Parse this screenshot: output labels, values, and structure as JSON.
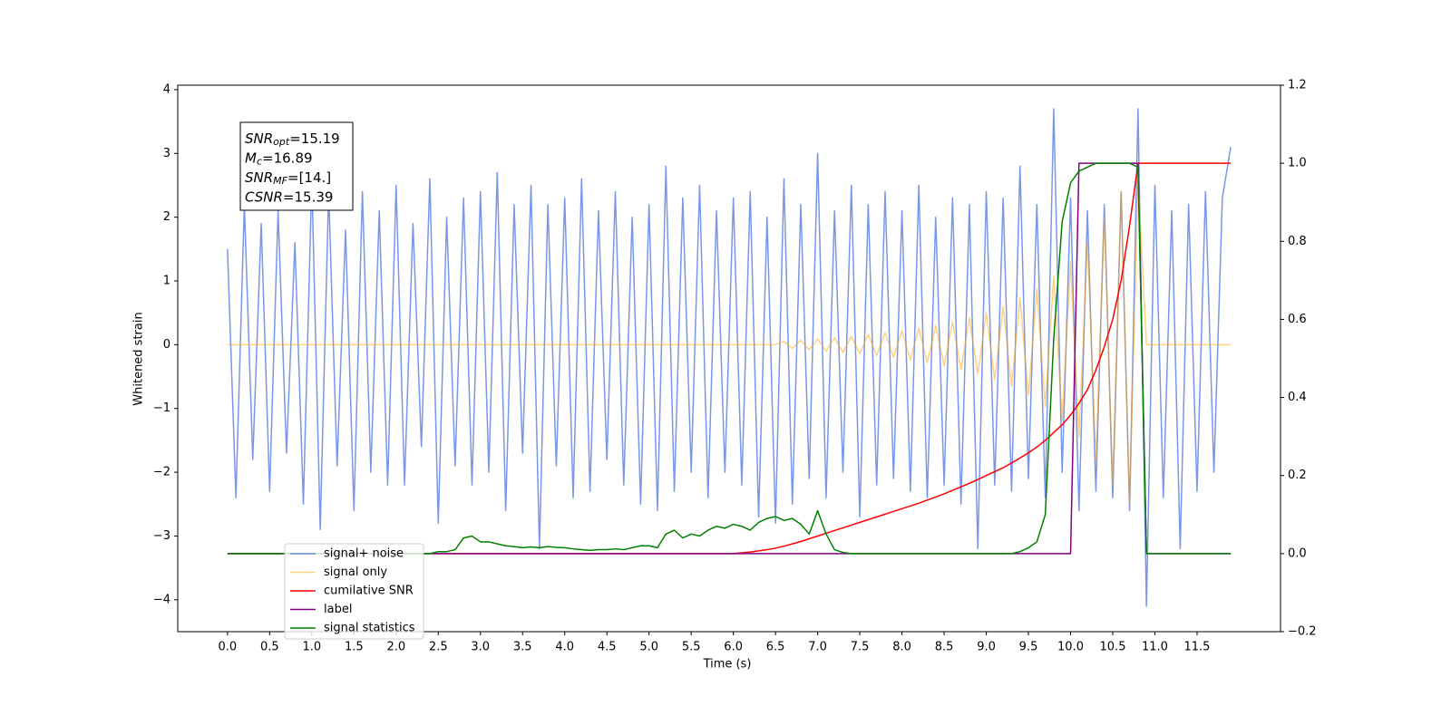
{
  "chart_data": {
    "type": "line",
    "xlabel": "Time (s)",
    "ylabel": "Whitened strain",
    "x": [
      0,
      0.1,
      0.2,
      0.3,
      0.4,
      0.5,
      0.6,
      0.7,
      0.8,
      0.9,
      1,
      1.1,
      1.2,
      1.3,
      1.4,
      1.5,
      1.6,
      1.7,
      1.8,
      1.9,
      2,
      2.1,
      2.2,
      2.3,
      2.4,
      2.5,
      2.6,
      2.7,
      2.8,
      2.9,
      3,
      3.1,
      3.2,
      3.3,
      3.4,
      3.5,
      3.6,
      3.7,
      3.8,
      3.9,
      4,
      4.1,
      4.2,
      4.3,
      4.4,
      4.5,
      4.6,
      4.7,
      4.8,
      4.9,
      5,
      5.1,
      5.2,
      5.3,
      5.4,
      5.5,
      5.6,
      5.7,
      5.8,
      5.9,
      6,
      6.1,
      6.2,
      6.3,
      6.4,
      6.5,
      6.6,
      6.7,
      6.8,
      6.9,
      7,
      7.1,
      7.2,
      7.3,
      7.4,
      7.5,
      7.6,
      7.7,
      7.8,
      7.9,
      8,
      8.1,
      8.2,
      8.3,
      8.4,
      8.5,
      8.6,
      8.7,
      8.8,
      8.9,
      9,
      9.1,
      9.2,
      9.3,
      9.4,
      9.5,
      9.6,
      9.7,
      9.8,
      9.9,
      10,
      10.1,
      10.2,
      10.3,
      10.4,
      10.5,
      10.6,
      10.7,
      10.8,
      10.9,
      11,
      11.1,
      11.2,
      11.3,
      11.4,
      11.5,
      11.6,
      11.7,
      11.8,
      11.9
    ],
    "series": [
      {
        "name": "signal+ noise",
        "color": "royalblue",
        "alpha": 0.7,
        "axis": "y",
        "values": [
          1.5,
          -2.4,
          2.2,
          -1.8,
          1.9,
          -2.3,
          2.1,
          -1.7,
          1.6,
          -2.5,
          2.6,
          -2.9,
          2.4,
          -1.9,
          1.8,
          -2.6,
          2.4,
          -2.0,
          2.1,
          -2.2,
          2.5,
          -2.2,
          1.9,
          -1.6,
          2.6,
          -2.8,
          2.0,
          -1.9,
          2.3,
          -2.2,
          2.4,
          -2.0,
          2.7,
          -2.6,
          2.2,
          -1.7,
          2.5,
          -3.2,
          2.2,
          -1.9,
          2.3,
          -2.4,
          2.6,
          -2.3,
          2.1,
          -1.8,
          2.4,
          -2.2,
          2.0,
          -2.5,
          2.2,
          -2.6,
          2.8,
          -2.3,
          2.3,
          -2.0,
          2.5,
          -2.4,
          2.1,
          -2.0,
          2.3,
          -2.2,
          2.4,
          -2.7,
          2.0,
          -2.8,
          2.6,
          -2.5,
          2.2,
          -2.1,
          3.0,
          -2.4,
          2.1,
          -2.0,
          2.5,
          -2.7,
          2.2,
          -2.2,
          2.4,
          -2.1,
          2.1,
          -2.3,
          2.5,
          -2.4,
          2.0,
          -2.2,
          2.3,
          -2.5,
          2.2,
          -3.2,
          2.4,
          -2.2,
          2.3,
          -2.3,
          2.8,
          -2.1,
          2.2,
          -2.4,
          3.7,
          -2.0,
          2.3,
          -2.6,
          2.1,
          -2.3,
          2.2,
          -2.4,
          2.4,
          -2.6,
          3.7,
          -4.1,
          2.5,
          -2.4,
          2.1,
          -3.2,
          2.2,
          -2.3,
          2.4,
          -2.0,
          2.3,
          3.1
        ]
      },
      {
        "name": "signal only",
        "color": "orange",
        "alpha": 0.5,
        "axis": "y",
        "values": [
          0,
          0,
          0,
          0,
          0,
          0,
          0,
          0,
          0,
          0,
          0,
          0,
          0,
          0,
          0,
          0,
          0,
          0,
          0,
          0,
          0,
          0,
          0,
          0,
          0,
          0,
          0,
          0,
          0,
          0,
          0,
          0,
          0,
          0,
          0,
          0,
          0,
          0,
          0,
          0,
          0,
          0,
          0,
          0,
          0,
          0,
          0,
          0,
          0,
          0,
          0,
          0,
          0,
          0,
          0,
          0,
          0,
          0,
          0,
          0,
          0,
          0,
          0,
          0,
          0,
          0,
          0.05,
          -0.06,
          0.07,
          -0.08,
          0.09,
          -0.1,
          0.11,
          -0.12,
          0.13,
          -0.14,
          0.16,
          -0.17,
          0.19,
          -0.2,
          0.22,
          -0.24,
          0.26,
          -0.28,
          0.3,
          -0.33,
          0.36,
          -0.39,
          0.42,
          -0.46,
          0.5,
          -0.55,
          0.6,
          -0.66,
          0.73,
          -0.8,
          0.88,
          -0.97,
          1.07,
          -1.18,
          1.3,
          -1.45,
          1.6,
          -1.8,
          2.0,
          -2.2,
          2.4,
          -2.5,
          2.6,
          0,
          0,
          0,
          0,
          0,
          0,
          0,
          0,
          0,
          0,
          0
        ]
      },
      {
        "name": "cumilative SNR",
        "color": "red",
        "alpha": 1,
        "axis": "y2",
        "values": [
          0,
          0,
          0,
          0,
          0,
          0,
          0,
          0,
          0,
          0,
          0,
          0,
          0,
          0,
          0,
          0,
          0,
          0,
          0,
          0,
          0,
          0,
          0,
          0,
          0,
          0,
          0,
          0,
          0,
          0,
          0,
          0,
          0,
          0,
          0,
          0,
          0,
          0,
          0,
          0,
          0,
          0,
          0,
          0,
          0,
          0,
          0,
          0,
          0,
          0,
          0,
          0,
          0,
          0,
          0,
          0,
          0,
          0,
          0,
          0,
          0,
          0.002,
          0.004,
          0.007,
          0.01,
          0.014,
          0.019,
          0.025,
          0.031,
          0.038,
          0.045,
          0.052,
          0.059,
          0.066,
          0.073,
          0.08,
          0.087,
          0.094,
          0.101,
          0.108,
          0.115,
          0.122,
          0.129,
          0.137,
          0.145,
          0.153,
          0.162,
          0.171,
          0.18,
          0.19,
          0.2,
          0.21,
          0.22,
          0.232,
          0.245,
          0.258,
          0.273,
          0.29,
          0.31,
          0.33,
          0.355,
          0.385,
          0.42,
          0.47,
          0.53,
          0.6,
          0.7,
          0.84,
          1,
          1,
          1,
          1,
          1,
          1,
          1,
          1,
          1,
          1,
          1,
          1
        ]
      },
      {
        "name": "label",
        "color": "purple",
        "alpha": 1,
        "axis": "y2",
        "values": [
          0,
          0,
          0,
          0,
          0,
          0,
          0,
          0,
          0,
          0,
          0,
          0,
          0,
          0,
          0,
          0,
          0,
          0,
          0,
          0,
          0,
          0,
          0,
          0,
          0,
          0,
          0,
          0,
          0,
          0,
          0,
          0,
          0,
          0,
          0,
          0,
          0,
          0,
          0,
          0,
          0,
          0,
          0,
          0,
          0,
          0,
          0,
          0,
          0,
          0,
          0,
          0,
          0,
          0,
          0,
          0,
          0,
          0,
          0,
          0,
          0,
          0,
          0,
          0,
          0,
          0,
          0,
          0,
          0,
          0,
          0,
          0,
          0,
          0,
          0,
          0,
          0,
          0,
          0,
          0,
          0,
          0,
          0,
          0,
          0,
          0,
          0,
          0,
          0,
          0,
          0,
          0,
          0,
          0,
          0,
          0,
          0,
          0,
          0,
          0,
          0,
          1,
          1,
          1,
          1,
          1,
          1,
          1,
          1,
          0,
          0,
          0,
          0,
          0,
          0,
          0,
          0,
          0,
          0,
          0
        ]
      },
      {
        "name": "signal statistics",
        "color": "green",
        "alpha": 1,
        "axis": "y2",
        "values": [
          0,
          0,
          0,
          0,
          0,
          0,
          0,
          0,
          0,
          0,
          0,
          0,
          0,
          0,
          0,
          0,
          0,
          0,
          0,
          0,
          0,
          0,
          0,
          0,
          0,
          0.005,
          0.005,
          0.01,
          0.04,
          0.045,
          0.03,
          0.03,
          0.025,
          0.02,
          0.018,
          0.015,
          0.017,
          0.015,
          0.018,
          0.016,
          0.015,
          0.012,
          0.01,
          0.008,
          0.01,
          0.01,
          0.012,
          0.01,
          0.015,
          0.02,
          0.02,
          0.015,
          0.05,
          0.06,
          0.04,
          0.05,
          0.045,
          0.06,
          0.07,
          0.065,
          0.075,
          0.07,
          0.06,
          0.08,
          0.09,
          0.095,
          0.085,
          0.09,
          0.075,
          0.05,
          0.11,
          0.05,
          0.01,
          0.003,
          0,
          0,
          0,
          0,
          0,
          0,
          0,
          0,
          0,
          0,
          0,
          0,
          0,
          0,
          0,
          0,
          0,
          0,
          0,
          0,
          0.005,
          0.015,
          0.03,
          0.1,
          0.55,
          0.85,
          0.95,
          0.98,
          0.99,
          1,
          1,
          1,
          1,
          1,
          0.99,
          0,
          0,
          0,
          0,
          0,
          0,
          0,
          0,
          0,
          0,
          0
        ]
      }
    ],
    "xlim": [
      -0.59,
      12.49
    ],
    "ylim": [
      -4.5,
      4.07
    ],
    "y2lim": [
      -0.2,
      1.2
    ],
    "xticks": [
      {
        "value": 0,
        "label": "0.0"
      },
      {
        "value": 0.5,
        "label": "0.5"
      },
      {
        "value": 1,
        "label": "1.0"
      },
      {
        "value": 1.5,
        "label": "1.5"
      },
      {
        "value": 2,
        "label": "2.0"
      },
      {
        "value": 2.5,
        "label": "2.5"
      },
      {
        "value": 3,
        "label": "3.0"
      },
      {
        "value": 3.5,
        "label": "3.5"
      },
      {
        "value": 4,
        "label": "4.0"
      },
      {
        "value": 4.5,
        "label": "4.5"
      },
      {
        "value": 5,
        "label": "5.0"
      },
      {
        "value": 5.5,
        "label": "5.5"
      },
      {
        "value": 6,
        "label": "6.0"
      },
      {
        "value": 6.5,
        "label": "6.5"
      },
      {
        "value": 7,
        "label": "7.0"
      },
      {
        "value": 7.5,
        "label": "7.5"
      },
      {
        "value": 8,
        "label": "8.0"
      },
      {
        "value": 8.5,
        "label": "8.5"
      },
      {
        "value": 9,
        "label": "9.0"
      },
      {
        "value": 9.5,
        "label": "9.5"
      },
      {
        "value": 10,
        "label": "10.0"
      },
      {
        "value": 10.5,
        "label": "10.5"
      },
      {
        "value": 11,
        "label": "11.0"
      },
      {
        "value": 11.5,
        "label": "11.5"
      }
    ],
    "yticks": [
      {
        "value": -4,
        "label": "−4"
      },
      {
        "value": -3,
        "label": "−3"
      },
      {
        "value": -2,
        "label": "−2"
      },
      {
        "value": -1,
        "label": "−1"
      },
      0,
      1,
      2,
      3,
      4
    ],
    "y2ticks": [
      {
        "value": -0.2,
        "label": "−0.2"
      },
      {
        "value": 0,
        "label": "0.0"
      },
      {
        "value": 0.2,
        "label": "0.2"
      },
      {
        "value": 0.4,
        "label": "0.4"
      },
      {
        "value": 0.6,
        "label": "0.6"
      },
      {
        "value": 0.8,
        "label": "0.8"
      },
      {
        "value": 1,
        "label": "1.0"
      },
      {
        "value": 1.2,
        "label": "1.2"
      }
    ],
    "legend": "lower left",
    "annotation": [
      {
        "symbol": "SNR",
        "subscript": "opt",
        "text": "=15.19"
      },
      {
        "symbol": "M",
        "subscript": "c",
        "text": "=16.89"
      },
      {
        "symbol": "SNR",
        "subscript": "MF",
        "text": "=[14.]"
      },
      {
        "symbol": "CSNR",
        "text": "=15.39"
      }
    ]
  }
}
